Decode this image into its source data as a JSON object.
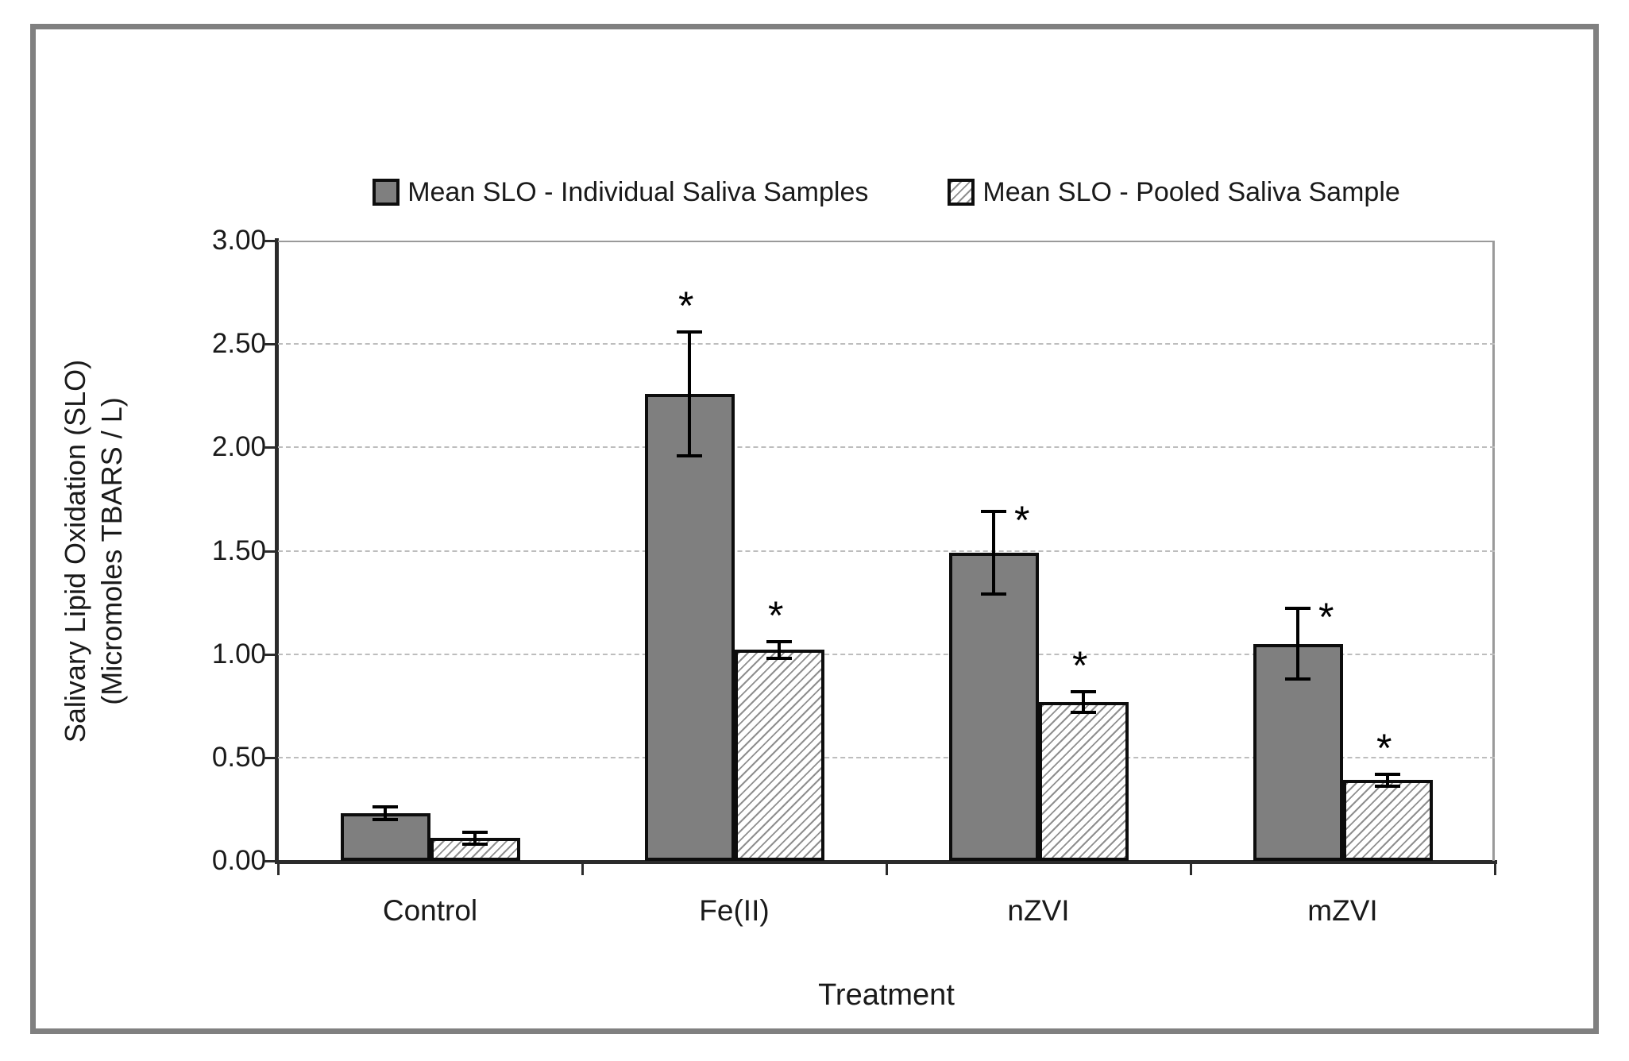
{
  "chart_data": {
    "type": "bar",
    "categories": [
      "Control",
      "Fe(II)",
      "nZVI",
      "mZVI"
    ],
    "series": [
      {
        "name": "Mean SLO - Individual Saliva Samples",
        "style": "solid",
        "values": [
          0.23,
          2.26,
          1.49,
          1.05
        ],
        "errors": [
          0.03,
          0.3,
          0.2,
          0.17
        ],
        "asterisk": [
          null,
          "above",
          "right",
          "right"
        ]
      },
      {
        "name": "Mean SLO - Pooled Saliva Sample",
        "style": "hatched",
        "values": [
          0.11,
          1.02,
          0.77,
          0.39
        ],
        "errors": [
          0.03,
          0.04,
          0.05,
          0.03
        ],
        "asterisk": [
          null,
          "above",
          "above",
          "above"
        ]
      }
    ],
    "xlabel": "Treatment",
    "ylabel_line1": "Salivary Lipid Oxidation (SLO)",
    "ylabel_line2": "(Micromoles TBARS / L)",
    "ylim": [
      0.0,
      3.0
    ],
    "ytick_step": 0.5,
    "y_ticks": [
      "3.00",
      "2.50",
      "2.00",
      "1.50",
      "1.00",
      "0.50",
      "0.00"
    ],
    "grid": "horizontal-dashed",
    "legend_position": "top",
    "significance_marker": "*"
  },
  "colors": {
    "bar_fill_solid": "#7f7f7f",
    "bar_border": "#0d0d0d",
    "hatch_line": "#8f8f8f",
    "frame_border": "#808080",
    "gridline": "#bdbdbd",
    "axis_line": "#2b2b2b",
    "plot_border": "#9a9a9a",
    "background": "#ffffff",
    "text": "#1a1a1a"
  }
}
